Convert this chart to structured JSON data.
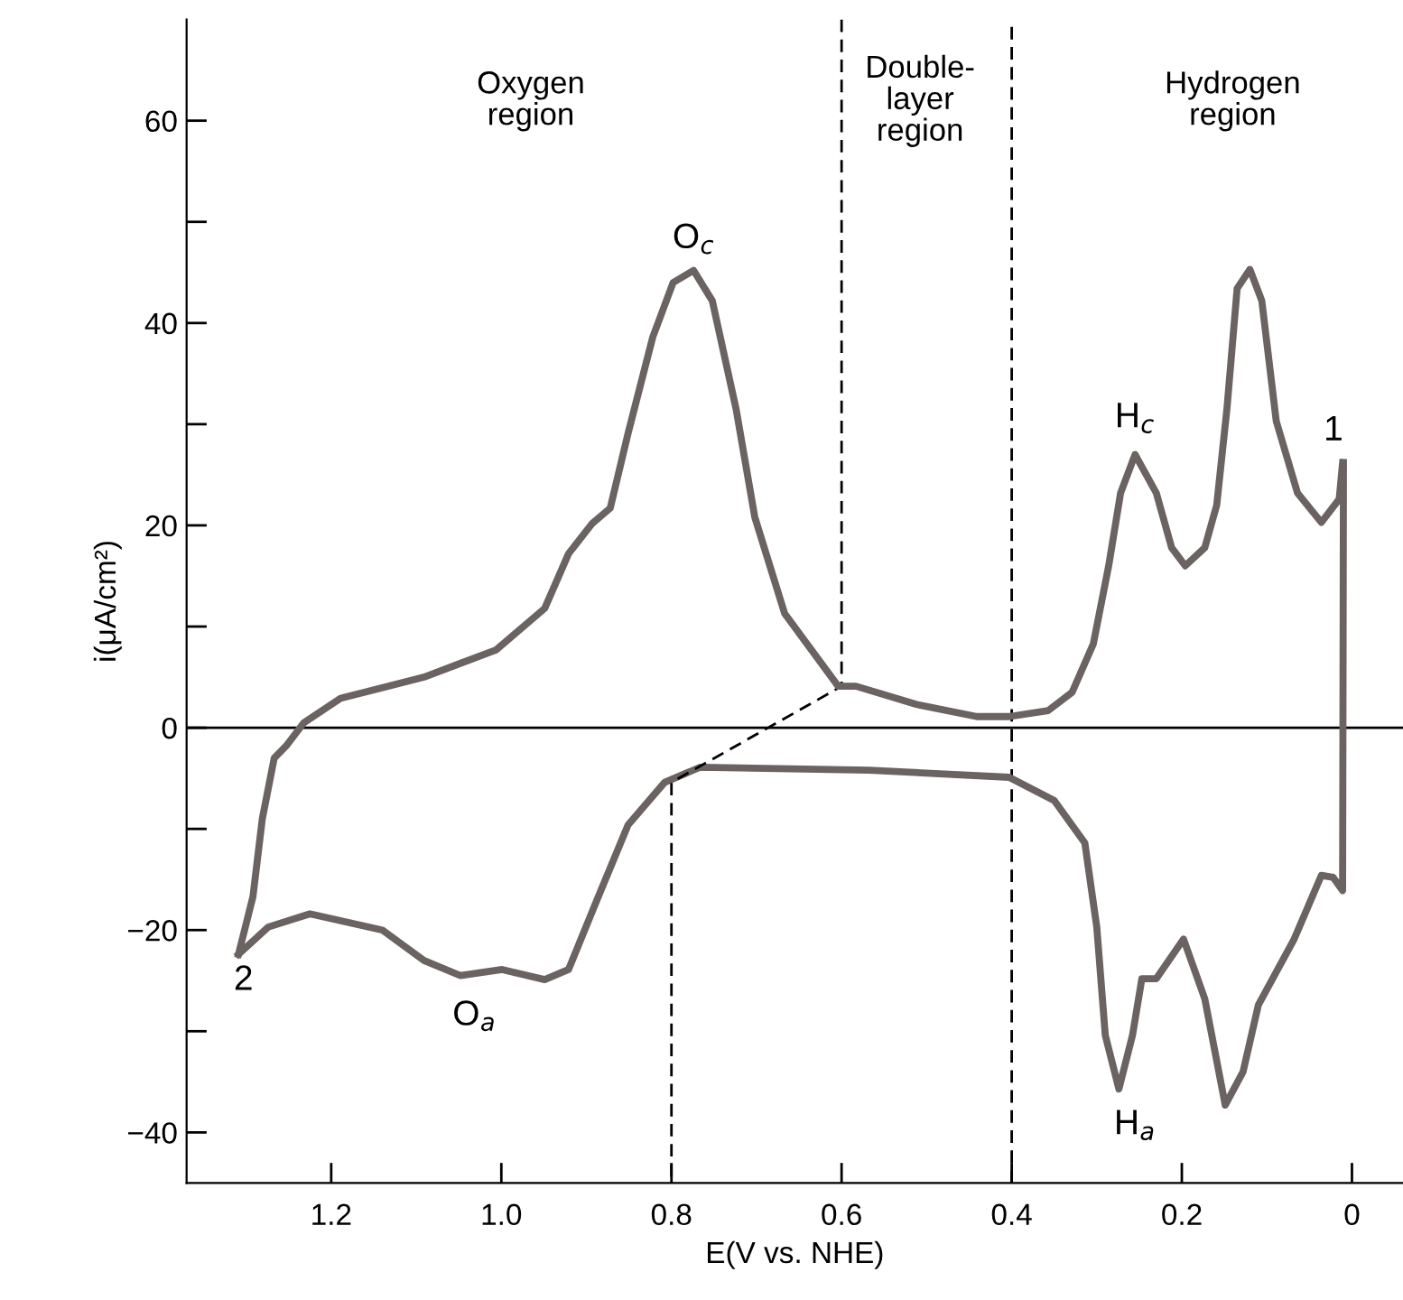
{
  "chart_data": {
    "type": "line",
    "xlabel": "E(V vs. NHE)",
    "ylabel": "i(μA/cm²)",
    "xlim": [
      1.37,
      -0.06
    ],
    "ylim": [
      -45,
      70
    ],
    "xticks": [
      {
        "value": 1.2,
        "label": "1.2"
      },
      {
        "value": 1.0,
        "label": "1.0"
      },
      {
        "value": 0.8,
        "label": "0.8"
      },
      {
        "value": 0.6,
        "label": "0.6"
      },
      {
        "value": 0.4,
        "label": "0.4"
      },
      {
        "value": 0.2,
        "label": "0.2"
      },
      0
    ],
    "yticks": [
      {
        "value": -40,
        "label": "−40"
      },
      {
        "value": -30,
        "label": null
      },
      {
        "value": -20,
        "label": "−20"
      },
      {
        "value": -10,
        "label": null
      },
      0,
      {
        "value": 10,
        "label": null
      },
      20,
      {
        "value": 30,
        "label": null
      },
      40,
      {
        "value": 50,
        "label": null
      },
      60
    ],
    "grid": false,
    "legend": false,
    "marker": "none",
    "series": [
      {
        "color": "#6b6262",
        "line_style": "solid",
        "x": [
          0.011,
          0.015,
          0.036,
          0.064,
          0.089,
          0.106,
          0.12,
          0.135,
          0.147,
          0.159,
          0.173,
          0.196,
          0.212,
          0.23,
          0.255,
          0.272,
          0.286,
          0.304,
          0.329,
          0.357,
          0.403,
          0.441,
          0.512,
          0.583,
          0.604,
          0.667,
          0.702,
          0.724,
          0.752,
          0.774,
          0.798,
          0.822,
          0.851,
          0.872,
          0.893,
          0.921,
          0.949,
          1.006,
          1.091,
          1.189,
          1.232,
          1.253,
          1.267,
          1.281,
          1.292,
          1.309
        ],
        "values": [
          26.2,
          22.6,
          20.3,
          23.2,
          30.3,
          42.2,
          45.3,
          43.4,
          31.5,
          22.0,
          17.8,
          16.0,
          17.8,
          23.2,
          27.0,
          23.2,
          16.0,
          8.3,
          3.5,
          1.7,
          1.1,
          1.1,
          2.3,
          4.1,
          4.1,
          11.3,
          20.8,
          31.5,
          42.2,
          45.2,
          44.0,
          38.6,
          29.1,
          21.7,
          20.2,
          17.2,
          11.8,
          7.7,
          5.0,
          2.9,
          0.5,
          -1.8,
          -3.0,
          -9.0,
          -16.7,
          -22.4
        ]
      },
      {
        "color": "#6b6262",
        "line_style": "solid",
        "x": [
          1.309,
          1.274,
          1.225,
          1.14,
          1.091,
          1.048,
          0.999,
          0.949,
          0.921,
          0.886,
          0.851,
          0.808,
          0.766,
          0.568,
          0.403,
          0.35,
          0.314,
          0.3,
          0.29,
          0.274,
          0.258,
          0.247,
          0.23,
          0.198,
          0.173,
          0.149,
          0.128,
          0.11,
          0.068,
          0.036,
          0.022,
          0.011,
          0.01
        ],
        "values": [
          -22.4,
          -19.7,
          -18.4,
          -20.0,
          -23.0,
          -24.5,
          -23.9,
          -24.9,
          -23.9,
          -16.7,
          -9.6,
          -5.4,
          -3.9,
          -4.2,
          -4.9,
          -7.2,
          -11.4,
          -19.7,
          -30.4,
          -35.7,
          -30.4,
          -24.8,
          -24.8,
          -20.9,
          -26.8,
          -37.3,
          -34.0,
          -27.4,
          -20.9,
          -14.6,
          -14.8,
          -16.1,
          26.2
        ]
      },
      {
        "color": "#000000",
        "line_style": "dashed",
        "x": [
          0.6,
          0.6,
          0.8,
          0.8
        ],
        "values": [
          70,
          4.1,
          -5.4,
          -45
        ]
      }
    ],
    "ref_lines": [
      {
        "axis": "y",
        "value": 0,
        "color": "#000000",
        "line_style": "solid"
      },
      {
        "axis": "x",
        "value": 0.4,
        "color": "#000000",
        "line_style": "dashed"
      }
    ],
    "annotations": [
      "Oxygen\nregion",
      "Double-\nlayer\nregion",
      "Hydrogen\nregion",
      {
        "text": "O$_{c}$",
        "x": 0.774,
        "y": 45.2
      },
      {
        "text": "H$_{c}$",
        "x": 0.255,
        "y": 27.0
      },
      {
        "text": "1",
        "x": 0.01,
        "y": 26.2
      },
      {
        "text": "2",
        "x": 1.309,
        "y": -22.4
      },
      {
        "text": "O$_{a}$",
        "x": 0.949,
        "y": -24.9
      },
      {
        "text": "H$_{a}$",
        "x": 0.149,
        "y": -37.3
      }
    ]
  }
}
